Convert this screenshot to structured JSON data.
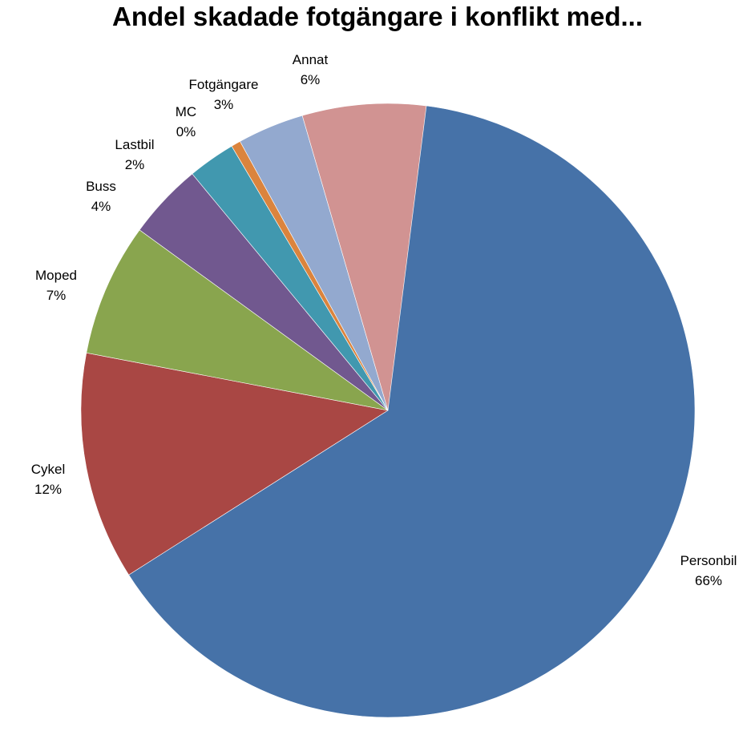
{
  "chart_data": {
    "type": "pie",
    "title": "Andel skadade fotgängare i konflikt med...",
    "slices": [
      {
        "name": "Personbil",
        "value": 66,
        "label": "66%",
        "color": "#4672A8"
      },
      {
        "name": "Cykel",
        "value": 12,
        "label": "12%",
        "color": "#A94744"
      },
      {
        "name": "Moped",
        "value": 7,
        "label": "7%",
        "color": "#89A54E"
      },
      {
        "name": "Buss",
        "value": 4,
        "label": "4%",
        "color": "#71588F"
      },
      {
        "name": "Lastbil",
        "value": 2,
        "label": "2%",
        "color": "#4198AF"
      },
      {
        "name": "MC",
        "value": 0,
        "label": "0%",
        "color": "#DB843D"
      },
      {
        "name": "Fotgängare",
        "value": 3,
        "label": "3%",
        "color": "#93A9CF"
      },
      {
        "name": "Annat",
        "value": 6,
        "label": "6%",
        "color": "#D19392"
      }
    ],
    "shares_estimated": [
      0.66,
      0.12,
      0.07,
      0.04,
      0.025,
      0.005,
      0.035,
      0.065
    ],
    "start": "12 o'clock",
    "direction": "clockwise",
    "legend": "none",
    "data_labels": "category name and percent outside slices"
  }
}
